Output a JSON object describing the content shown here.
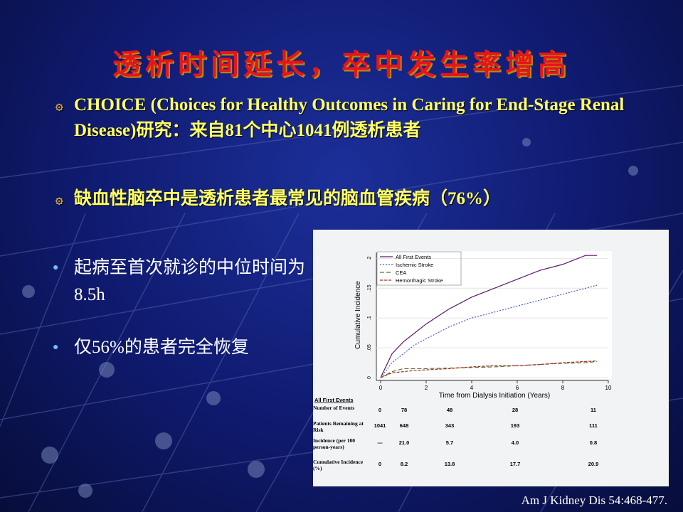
{
  "title": "透析时间延长，卒中发生率增高",
  "bullets": [
    "CHOICE (Choices for Healthy Outcomes in Caring for End-Stage Renal Disease)研究：来自81个中心1041例透析患者",
    "缺血性脑卒中是透析患者最常见的脑血管疾病（76%）"
  ],
  "side_points": [
    "起病至首次就诊的中位时间为8.5h",
    "仅56%的患者完全恢复"
  ],
  "figure": {
    "xlabel": "Time from Dialysis Initiation (Years)",
    "ylabel": "Cumulative Incidence",
    "xlim": [
      0,
      10
    ],
    "ylim": [
      0,
      0.21
    ],
    "xticks": [
      0,
      2,
      4,
      6,
      8,
      10
    ],
    "yticks": [
      0,
      {
        "value": 0.05,
        "label": ".05"
      },
      {
        "value": 0.1,
        "label": ".1"
      },
      {
        "value": 0.15,
        "label": ".15"
      },
      {
        "value": 0.2,
        "label": ".2"
      }
    ],
    "x": [
      0,
      0.5,
      1,
      1.5,
      2,
      3,
      4,
      5,
      6,
      7,
      8,
      9,
      9.5
    ],
    "series": [
      {
        "name": "All First Events",
        "color": "#5b1a6b",
        "values": [
          0,
          0.04,
          0.06,
          0.075,
          0.09,
          0.115,
          0.135,
          0.15,
          0.165,
          0.18,
          0.19,
          0.205,
          0.205
        ]
      },
      {
        "name": "Ischemic Stroke",
        "color": "#4a5cc0",
        "values": [
          0,
          0.025,
          0.04,
          0.055,
          0.065,
          0.085,
          0.1,
          0.11,
          0.12,
          0.13,
          0.14,
          0.15,
          0.155
        ]
      },
      {
        "name": "CEA",
        "color": "#4e7a3a",
        "values": [
          0,
          0.01,
          0.015,
          0.015,
          0.015,
          0.016,
          0.017,
          0.018,
          0.02,
          0.022,
          0.024,
          0.025,
          0.027
        ]
      },
      {
        "name": "Hemorrhagic Stroke",
        "color": "#b0281e",
        "values": [
          0,
          0.008,
          0.01,
          0.012,
          0.013,
          0.015,
          0.018,
          0.02,
          0.02,
          0.022,
          0.025,
          0.027,
          0.028
        ]
      }
    ],
    "table": {
      "header": "All First Events",
      "rows": [
        {
          "label": "Number of Events",
          "cells": [
            "0",
            "78",
            "48",
            "28",
            "11"
          ]
        },
        {
          "label": "Patients Remaining at Risk",
          "cells": [
            "1041",
            "648",
            "343",
            "193",
            "111"
          ]
        },
        {
          "label": "Incidence (per 100 person-years)",
          "cells": [
            "---",
            "21.0",
            "5.7",
            "4.0",
            "0.8"
          ]
        },
        {
          "label": "Cumulative Incidence (%)",
          "cells": [
            "0",
            "8.2",
            "13.8",
            "17.7",
            "20.9"
          ]
        }
      ]
    }
  },
  "citation": "Am J Kidney Dis 54:468-477."
}
